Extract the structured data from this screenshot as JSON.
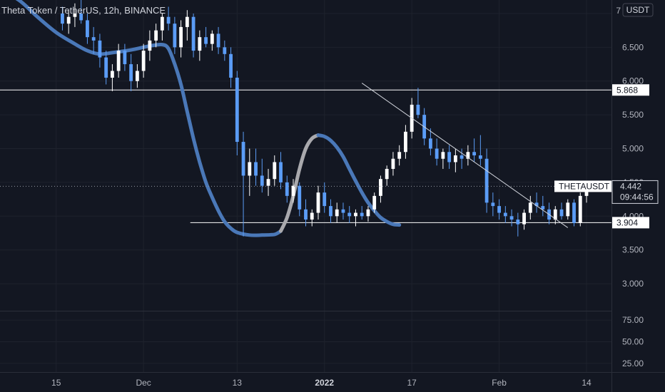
{
  "header": {
    "symbol_title": "Theta Token / TetherUS, 12h, BINANCE",
    "currency_button": "USDT"
  },
  "colors": {
    "background": "#131722",
    "grid": "#1e222d",
    "candle_up": "#ffffff",
    "candle_down": "#5b9cf6",
    "ma_down": "#4a78b8",
    "ma_up": "#a9a9ad",
    "level_line": "#ffffff",
    "trend_line": "#d1d4dc"
  },
  "chart_data": [
    {
      "type": "candlestick",
      "title": "Theta Token / TetherUS, 12h, BINANCE",
      "symbol": "THETAUSDT",
      "interval": "12h",
      "ylim": [
        2.6,
        7.2
      ],
      "y_ticks": [
        "3.000",
        "3.500",
        "4.000",
        "4.500",
        "5.000",
        "5.500",
        "6.000",
        "6.500",
        "7.000"
      ],
      "x_ticks": [
        "15",
        "Dec",
        "13",
        "2022",
        "17",
        "Feb",
        "14"
      ],
      "x_tick_positions": [
        -1,
        13,
        28,
        42,
        56,
        70,
        84
      ],
      "x_range": [
        -10,
        88
      ],
      "candles": [
        [
          7.0,
          7.1,
          6.75,
          6.85
        ],
        [
          6.85,
          7.05,
          6.7,
          6.95
        ],
        [
          6.95,
          7.15,
          6.8,
          7.0
        ],
        [
          7.0,
          7.2,
          6.85,
          6.9
        ],
        [
          6.9,
          7.0,
          6.55,
          6.65
        ],
        [
          6.65,
          6.8,
          6.4,
          6.6
        ],
        [
          6.6,
          6.7,
          6.2,
          6.35
        ],
        [
          6.35,
          6.45,
          5.95,
          6.05
        ],
        [
          6.05,
          6.25,
          5.85,
          6.15
        ],
        [
          6.15,
          6.55,
          6.05,
          6.45
        ],
        [
          6.45,
          6.55,
          6.15,
          6.25
        ],
        [
          6.25,
          6.4,
          5.85,
          6.0
        ],
        [
          6.0,
          6.25,
          5.9,
          6.15
        ],
        [
          6.15,
          6.55,
          6.05,
          6.45
        ],
        [
          6.45,
          6.75,
          6.3,
          6.6
        ],
        [
          6.6,
          6.85,
          6.5,
          6.75
        ],
        [
          6.75,
          7.0,
          6.6,
          6.95
        ],
        [
          6.95,
          7.1,
          6.75,
          6.85
        ],
        [
          6.85,
          6.95,
          6.4,
          6.5
        ],
        [
          6.5,
          6.9,
          6.35,
          6.8
        ],
        [
          6.8,
          7.05,
          6.6,
          6.95
        ],
        [
          6.95,
          7.0,
          6.35,
          6.45
        ],
        [
          6.45,
          6.75,
          6.3,
          6.65
        ],
        [
          6.65,
          6.8,
          6.5,
          6.55
        ],
        [
          6.55,
          6.75,
          6.45,
          6.7
        ],
        [
          6.7,
          6.8,
          6.4,
          6.5
        ],
        [
          6.5,
          6.6,
          6.3,
          6.4
        ],
        [
          6.4,
          6.5,
          5.9,
          6.05
        ],
        [
          6.05,
          6.15,
          4.9,
          5.1
        ],
        [
          5.1,
          5.25,
          3.7,
          4.6
        ],
        [
          4.6,
          5.0,
          4.3,
          4.8
        ],
        [
          4.8,
          5.0,
          4.45,
          4.6
        ],
        [
          4.6,
          4.85,
          4.35,
          4.45
        ],
        [
          4.45,
          4.7,
          4.3,
          4.55
        ],
        [
          4.55,
          4.9,
          4.45,
          4.8
        ],
        [
          4.8,
          4.95,
          4.4,
          4.5
        ],
        [
          4.5,
          4.6,
          4.2,
          4.3
        ],
        [
          4.3,
          4.55,
          4.2,
          4.45
        ],
        [
          4.45,
          4.5,
          4.0,
          4.1
        ],
        [
          4.1,
          4.25,
          3.85,
          3.95
        ],
        [
          3.95,
          4.1,
          3.85,
          4.05
        ],
        [
          4.05,
          4.45,
          3.95,
          4.35
        ],
        [
          4.35,
          4.5,
          4.05,
          4.15
        ],
        [
          4.15,
          4.25,
          3.9,
          4.0
        ],
        [
          4.0,
          4.2,
          3.9,
          4.1
        ],
        [
          4.1,
          4.2,
          3.95,
          4.05
        ],
        [
          4.05,
          4.15,
          3.9,
          4.0
        ],
        [
          4.0,
          4.1,
          3.85,
          4.05
        ],
        [
          4.05,
          4.15,
          3.95,
          4.0
        ],
        [
          4.0,
          4.15,
          3.92,
          4.1
        ],
        [
          4.1,
          4.35,
          4.05,
          4.3
        ],
        [
          4.3,
          4.6,
          4.2,
          4.55
        ],
        [
          4.55,
          4.75,
          4.45,
          4.7
        ],
        [
          4.7,
          4.95,
          4.6,
          4.85
        ],
        [
          4.85,
          5.05,
          4.75,
          4.95
        ],
        [
          4.95,
          5.35,
          4.85,
          5.25
        ],
        [
          5.25,
          5.75,
          5.15,
          5.65
        ],
        [
          5.65,
          5.9,
          5.45,
          5.5
        ],
        [
          5.5,
          5.6,
          5.05,
          5.15
        ],
        [
          5.15,
          5.3,
          4.9,
          5.0
        ],
        [
          5.0,
          5.15,
          4.75,
          4.85
        ],
        [
          4.85,
          5.0,
          4.7,
          4.95
        ],
        [
          4.95,
          5.05,
          4.7,
          4.8
        ],
        [
          4.8,
          5.0,
          4.65,
          4.9
        ],
        [
          4.9,
          5.0,
          4.7,
          4.85
        ],
        [
          4.85,
          5.05,
          4.75,
          4.95
        ],
        [
          4.95,
          5.15,
          4.8,
          4.9
        ],
        [
          4.9,
          5.2,
          4.75,
          4.85
        ],
        [
          4.85,
          5.0,
          4.05,
          4.2
        ],
        [
          4.2,
          4.35,
          4.0,
          4.15
        ],
        [
          4.15,
          4.25,
          3.95,
          4.05
        ],
        [
          4.05,
          4.15,
          3.9,
          4.0
        ],
        [
          4.0,
          4.1,
          3.85,
          3.95
        ],
        [
          3.95,
          4.05,
          3.7,
          3.88
        ],
        [
          3.88,
          4.1,
          3.8,
          4.05
        ],
        [
          4.05,
          4.3,
          3.95,
          4.2
        ],
        [
          4.2,
          4.35,
          4.05,
          4.15
        ],
        [
          4.15,
          4.3,
          4.0,
          4.1
        ],
        [
          4.1,
          4.2,
          3.88,
          3.95
        ],
        [
          3.95,
          4.15,
          3.88,
          4.1
        ],
        [
          4.1,
          4.2,
          3.95,
          4.0
        ],
        [
          4.0,
          4.25,
          3.95,
          4.2
        ],
        [
          4.2,
          4.25,
          3.85,
          3.9
        ],
        [
          3.9,
          4.35,
          3.85,
          4.3
        ],
        [
          4.3,
          4.48,
          4.2,
          4.44
        ]
      ],
      "moving_average": [
        [
          -11,
          7.4
        ],
        [
          -7,
          7.2
        ],
        [
          -4,
          6.95
        ],
        [
          -1,
          6.72
        ],
        [
          2,
          6.55
        ],
        [
          4,
          6.45
        ],
        [
          6,
          6.4
        ],
        [
          8,
          6.42
        ],
        [
          11,
          6.46
        ],
        [
          14,
          6.52
        ],
        [
          16,
          6.54
        ],
        [
          17,
          6.48
        ],
        [
          18,
          6.25
        ],
        [
          19,
          5.95
        ],
        [
          20,
          5.55
        ],
        [
          21,
          5.15
        ],
        [
          22,
          4.8
        ],
        [
          23,
          4.5
        ],
        [
          24,
          4.28
        ],
        [
          25,
          4.08
        ],
        [
          26,
          3.92
        ],
        [
          27,
          3.82
        ],
        [
          28,
          3.76
        ],
        [
          30,
          3.72
        ],
        [
          32,
          3.72
        ],
        [
          34,
          3.73
        ],
        [
          35,
          3.78
        ],
        [
          36,
          3.98
        ],
        [
          37,
          4.3
        ],
        [
          38,
          4.7
        ],
        [
          39,
          5.0
        ],
        [
          40,
          5.15
        ],
        [
          41,
          5.2
        ],
        [
          42,
          5.18
        ],
        [
          43,
          5.12
        ],
        [
          44,
          5.02
        ],
        [
          45,
          4.88
        ],
        [
          46,
          4.7
        ],
        [
          47,
          4.52
        ],
        [
          48,
          4.35
        ],
        [
          49,
          4.2
        ],
        [
          50,
          4.08
        ],
        [
          51,
          3.98
        ],
        [
          52,
          3.92
        ],
        [
          53,
          3.88
        ],
        [
          54,
          3.87
        ]
      ],
      "ma_turn_index": 35,
      "ma_top_index": 41,
      "levels": [
        {
          "value": 5.868,
          "label": "5.868",
          "x_from": -11
        },
        {
          "value": 3.904,
          "label": "3.904",
          "x_from": 20.5
        }
      ],
      "trendline": {
        "from": [
          48,
          5.97
        ],
        "to": [
          81,
          3.83
        ]
      },
      "last_price": {
        "symbol_label": "THETAUSDT",
        "value": "4.442",
        "countdown": "09:44:56",
        "y": 4.442
      }
    },
    {
      "type": "line",
      "title": "",
      "ylim": [
        15,
        85
      ],
      "y_ticks": [
        "25.00",
        "50.00",
        "75.00"
      ],
      "series": []
    }
  ]
}
